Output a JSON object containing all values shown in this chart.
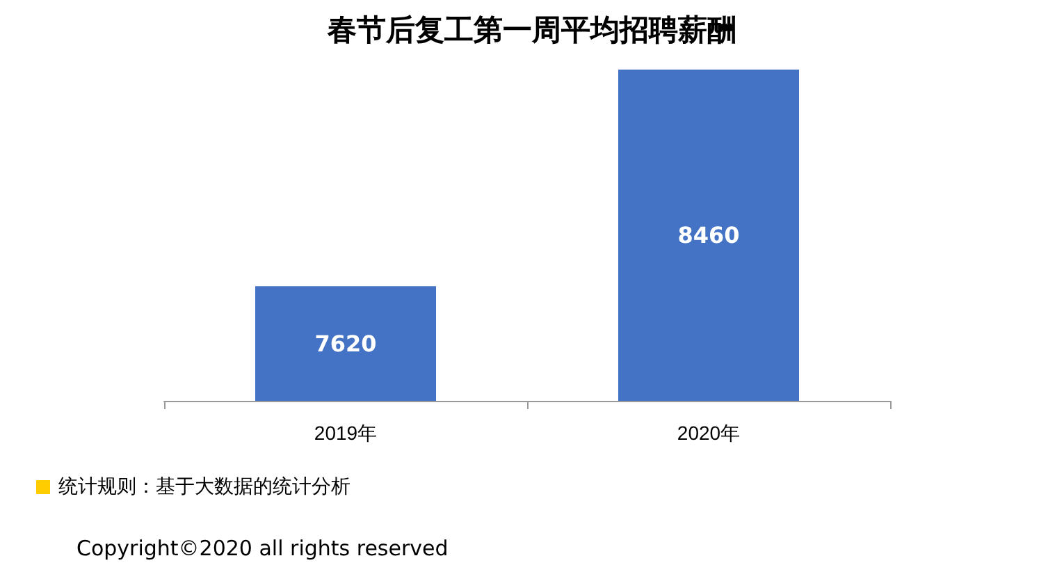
{
  "chart_data": {
    "type": "bar",
    "title": "春节后复工第一周平均招聘薪酬",
    "categories": [
      "2019年",
      "2020年"
    ],
    "values": [
      7620,
      8460
    ],
    "color": "#4472c4",
    "ylim": [
      7175,
      8460
    ],
    "data_labels": true,
    "annotations": [
      "统计规则：基于大数据的统计分析",
      "Copyright©2020 all rights reserved"
    ]
  }
}
